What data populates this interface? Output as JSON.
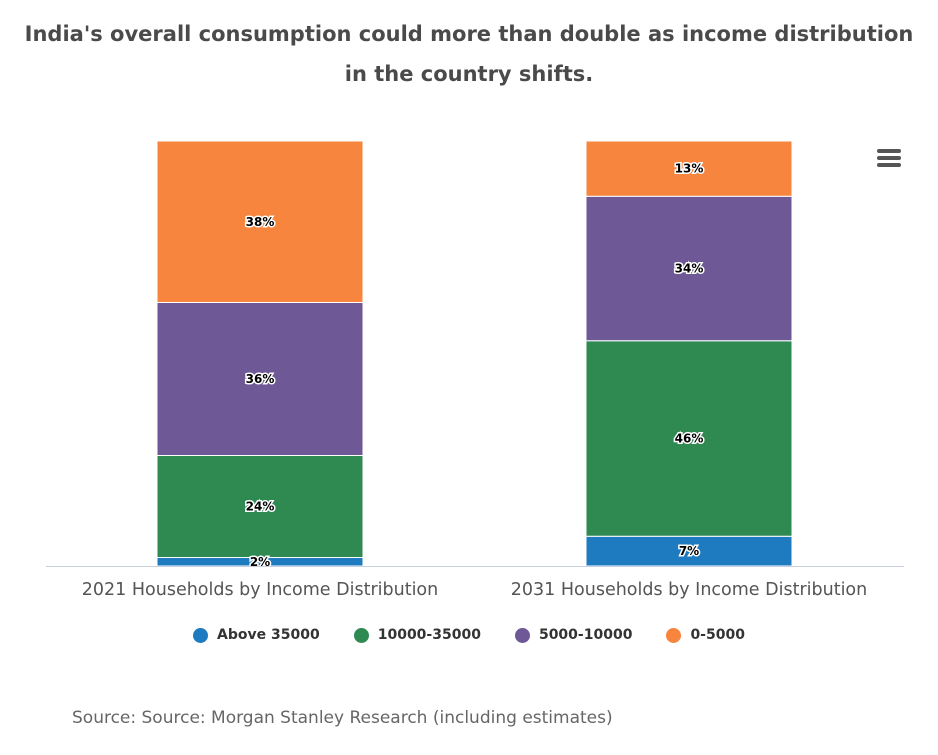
{
  "chart_data": {
    "type": "bar",
    "stacked": "percent",
    "title": "India's overall consumption could more than double as income distribution in the country shifts.",
    "categories": [
      "2021 Households by Income Distribution",
      "2031 Households by Income Distribution"
    ],
    "series": [
      {
        "name": "Above 35000",
        "color": "#1f7bbf",
        "values": [
          2,
          7
        ],
        "labels": [
          "2%",
          "7%"
        ]
      },
      {
        "name": "10000-35000",
        "color": "#2f8a52",
        "values": [
          24,
          46
        ],
        "labels": [
          "24%",
          "46%"
        ]
      },
      {
        "name": "5000-10000",
        "color": "#6e5896",
        "values": [
          36,
          34
        ],
        "labels": [
          "36%",
          "34%"
        ]
      },
      {
        "name": "0-5000",
        "color": "#f7853e",
        "values": [
          38,
          13
        ],
        "labels": [
          "38%",
          "13%"
        ]
      }
    ],
    "ylim": [
      0,
      100
    ],
    "grid": false,
    "legend_position": "bottom-center",
    "source": "Source: Source: Morgan Stanley Research (including estimates)"
  },
  "ui": {
    "menu_icon": "hamburger-menu-icon"
  }
}
